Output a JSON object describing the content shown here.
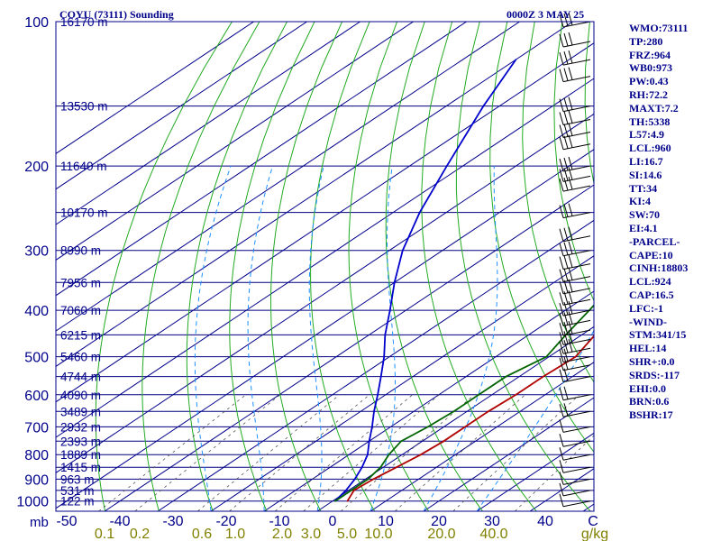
{
  "title_left": "COYU (73111) Sounding",
  "title_right": "0000Z  3 MAY 25",
  "colors": {
    "frame": "#00008b",
    "isobar": "#000080",
    "isotherm": "#00008b",
    "dry_adiabat": "#22aa22",
    "moist_adiabat": "#1e90ff",
    "mixing_ratio": "#555555",
    "temperature": "#b00000",
    "dewpoint": "#006400",
    "parcel": "#0000cd",
    "wind": "#000000",
    "text": "#00008b",
    "mixing_label": "#808000"
  },
  "chart_data": {
    "type": "skew-t",
    "pressure_levels": [
      100,
      200,
      300,
      400,
      500,
      600,
      700,
      800,
      900,
      1000
    ],
    "pressure_labels": [
      "100",
      "200",
      "300",
      "400",
      "500",
      "600",
      "700",
      "800",
      "900",
      "1000"
    ],
    "height_labels": [
      {
        "p": 100,
        "text": "16170 m"
      },
      {
        "p": 150,
        "text": "13530 m"
      },
      {
        "p": 200,
        "text": "11640 m"
      },
      {
        "p": 250,
        "text": "10170 m"
      },
      {
        "p": 300,
        "text": "8990 m"
      },
      {
        "p": 350,
        "text": "7956 m"
      },
      {
        "p": 400,
        "text": "7060 m"
      },
      {
        "p": 450,
        "text": "6215 m"
      },
      {
        "p": 500,
        "text": "5460 m"
      },
      {
        "p": 550,
        "text": "4744 m"
      },
      {
        "p": 600,
        "text": "4090 m"
      },
      {
        "p": 650,
        "text": "3489 m"
      },
      {
        "p": 700,
        "text": "2932 m"
      },
      {
        "p": 750,
        "text": "2393 m"
      },
      {
        "p": 800,
        "text": "1889 m"
      },
      {
        "p": 850,
        "text": "1415 m"
      },
      {
        "p": 900,
        "text": "963 m"
      },
      {
        "p": 950,
        "text": "531 m"
      },
      {
        "p": 1000,
        "text": "122 m"
      }
    ],
    "temperature_ticks": [
      {
        "t": -50,
        "text": "-50"
      },
      {
        "t": -40,
        "text": "-40"
      },
      {
        "t": -30,
        "text": "-30"
      },
      {
        "t": -20,
        "text": "-20"
      },
      {
        "t": -10,
        "text": "-10"
      },
      {
        "t": 0,
        "text": "0"
      },
      {
        "t": 10,
        "text": "10"
      },
      {
        "t": 20,
        "text": "20"
      },
      {
        "t": 30,
        "text": "30"
      },
      {
        "t": 40,
        "text": "40"
      }
    ],
    "mixing_ratio_labels": [
      "0.1",
      "0.2",
      "0.6",
      "1.0",
      "2.0",
      "3.0",
      "5.0",
      "10.0",
      "20.0",
      "40.0"
    ],
    "corner_labels": {
      "mb": "mb",
      "gkg": "g/kg",
      "c": "C"
    },
    "temperature_profile": [
      {
        "p": 1000,
        "t": 2.8
      },
      {
        "p": 950,
        "t": 1.0
      },
      {
        "p": 900,
        "t": 1.5
      },
      {
        "p": 850,
        "t": 2.5
      },
      {
        "p": 800,
        "t": 3.5
      },
      {
        "p": 750,
        "t": 4.0
      },
      {
        "p": 700,
        "t": 4.0
      },
      {
        "p": 650,
        "t": 4.0
      },
      {
        "p": 600,
        "t": 4.5
      },
      {
        "p": 550,
        "t": 4.5
      },
      {
        "p": 500,
        "t": 5.0
      },
      {
        "p": 450,
        "t": 2.5
      },
      {
        "p": 400,
        "t": -0.5
      },
      {
        "p": 350,
        "t": -3.5
      },
      {
        "p": 300,
        "t": -5.5
      },
      {
        "p": 280,
        "t": -5.5
      },
      {
        "p": 250,
        "t": -2.0
      },
      {
        "p": 200,
        "t": 15.0
      },
      {
        "p": 150,
        "t": 26.0
      },
      {
        "p": 100,
        "t": 50.0
      }
    ],
    "dewpoint_profile": [
      {
        "p": 1000,
        "t": 0.5
      },
      {
        "p": 950,
        "t": 0.5
      },
      {
        "p": 900,
        "t": 0.5
      },
      {
        "p": 850,
        "t": -0.5
      },
      {
        "p": 800,
        "t": -2.5
      },
      {
        "p": 750,
        "t": -4.0
      },
      {
        "p": 700,
        "t": -3.0
      },
      {
        "p": 650,
        "t": -2.5
      },
      {
        "p": 600,
        "t": -2.5
      },
      {
        "p": 550,
        "t": -2.5
      },
      {
        "p": 500,
        "t": -0.5
      },
      {
        "p": 450,
        "t": -3.0
      },
      {
        "p": 400,
        "t": -5.5
      },
      {
        "p": 350,
        "t": -8.5
      },
      {
        "p": 300,
        "t": -9.0
      },
      {
        "p": 280,
        "t": -7.5
      },
      {
        "p": 250,
        "t": -17.0
      },
      {
        "p": 200,
        "t": -19.0
      },
      {
        "p": 150,
        "t": -3.0
      },
      {
        "p": 100,
        "t": 17.0
      }
    ],
    "parcel_profile": [
      {
        "p": 1000,
        "t": 0.5
      },
      {
        "p": 950,
        "t": -0.5
      },
      {
        "p": 900,
        "t": -2.0
      },
      {
        "p": 850,
        "t": -4.0
      },
      {
        "p": 800,
        "t": -6.5
      },
      {
        "p": 750,
        "t": -10.0
      },
      {
        "p": 700,
        "t": -13.5
      },
      {
        "p": 650,
        "t": -17.5
      },
      {
        "p": 600,
        "t": -21.5
      },
      {
        "p": 550,
        "t": -26.0
      },
      {
        "p": 500,
        "t": -31.0
      },
      {
        "p": 450,
        "t": -37.0
      },
      {
        "p": 400,
        "t": -43.0
      },
      {
        "p": 350,
        "t": -50.0
      },
      {
        "p": 300,
        "t": -57.5
      },
      {
        "p": 250,
        "t": -65.0
      },
      {
        "p": 200,
        "t": -73.0
      },
      {
        "p": 150,
        "t": -83.0
      },
      {
        "p": 120,
        "t": -90.0
      }
    ],
    "ylim": [
      100,
      1000
    ],
    "xlim": [
      -50,
      50
    ],
    "scale": "log-p",
    "grid": true
  },
  "indices": [
    "WMO:73111",
    "TP:280",
    "FRZ:964",
    "WB0:973",
    "PW:0.43",
    "RH:72.2",
    "MAXT:7.2",
    "TH:5338",
    "L57:4.9",
    "LCL:960",
    "LI:16.7",
    "SI:14.6",
    "TT:34",
    "KI:4",
    "SW:70",
    "EI:4.1",
    "-PARCEL-",
    "CAPE:10",
    "CINH:18803",
    "LCL:924",
    "CAP:16.5",
    "LFC:-1",
    "-WIND-",
    "STM:341/15",
    "HEL:14",
    "SHR+:0.0",
    "SRDS:-117",
    "EHI:0.0",
    "BRN:0.6",
    "BSHR:17"
  ]
}
